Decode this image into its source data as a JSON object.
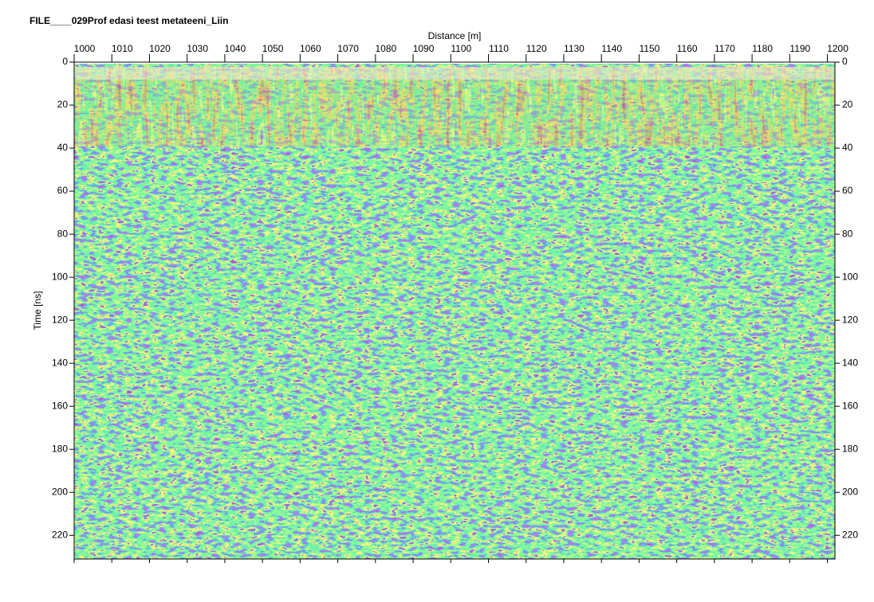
{
  "chart_data": {
    "type": "radargram",
    "title": "FILE____029Prof edasi teest metateeni_Liin",
    "xlabel": "Distance [m]",
    "ylabel": "Time [ns]",
    "xlim": [
      1000,
      1202
    ],
    "ylim": [
      0,
      231
    ],
    "xticks": [
      1000,
      1010,
      1020,
      1030,
      1040,
      1050,
      1060,
      1070,
      1080,
      1090,
      1100,
      1110,
      1120,
      1130,
      1140,
      1150,
      1160,
      1170,
      1180,
      1190,
      1200
    ],
    "yticks": [
      0,
      20,
      40,
      60,
      80,
      100,
      120,
      140,
      160,
      180,
      200,
      220
    ]
  }
}
